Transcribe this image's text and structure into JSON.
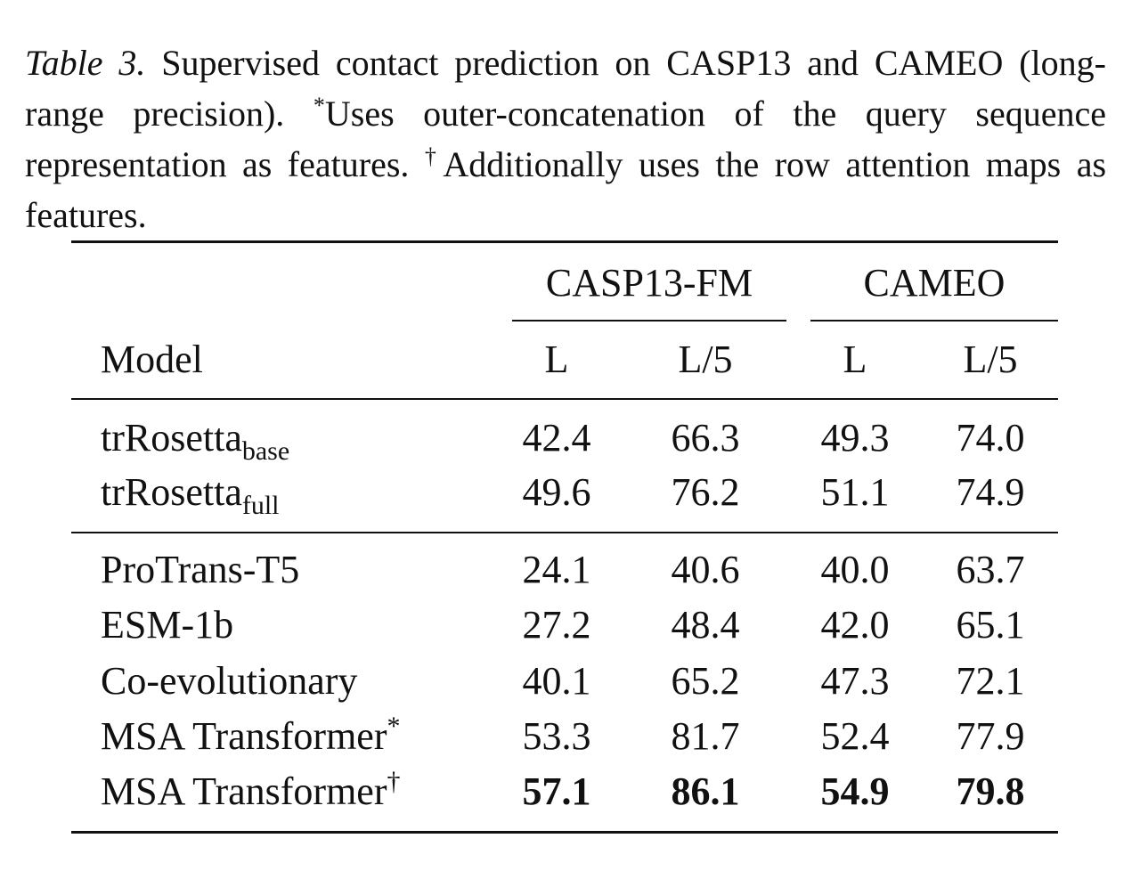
{
  "caption": {
    "label": "Table 3.",
    "text1": "Supervised contact prediction on CASP13 and CAMEO (long-range precision).",
    "mark1": "*",
    "text2": "Uses outer-concatenation of the query sequence representation as features.",
    "mark2": "†",
    "text3": "Additionally uses the row attention maps as features."
  },
  "table": {
    "column_groups": [
      "CASP13-FM",
      "CAMEO"
    ],
    "header": [
      "Model",
      "L",
      "L/5",
      "L",
      "L/5"
    ],
    "sections": [
      {
        "rows": [
          {
            "model": "trRosetta",
            "subscript": "base",
            "values": [
              "42.4",
              "66.3",
              "49.3",
              "74.0"
            ]
          },
          {
            "model": "trRosetta",
            "subscript": "full",
            "values": [
              "49.6",
              "76.2",
              "51.1",
              "74.9"
            ]
          }
        ]
      },
      {
        "rows": [
          {
            "model": "ProTrans-T5",
            "values": [
              "24.1",
              "40.6",
              "40.0",
              "63.7"
            ]
          },
          {
            "model": "ESM-1b",
            "values": [
              "27.2",
              "48.4",
              "42.0",
              "65.1"
            ]
          },
          {
            "model": "Co-evolutionary",
            "values": [
              "40.1",
              "65.2",
              "47.3",
              "72.1"
            ]
          },
          {
            "model": "MSA Transformer",
            "superscript": "*",
            "values": [
              "53.3",
              "81.7",
              "52.4",
              "77.9"
            ]
          },
          {
            "model": "MSA Transformer",
            "superscript": "†",
            "bold": true,
            "values": [
              "57.1",
              "86.1",
              "54.9",
              "79.8"
            ]
          }
        ]
      }
    ]
  }
}
